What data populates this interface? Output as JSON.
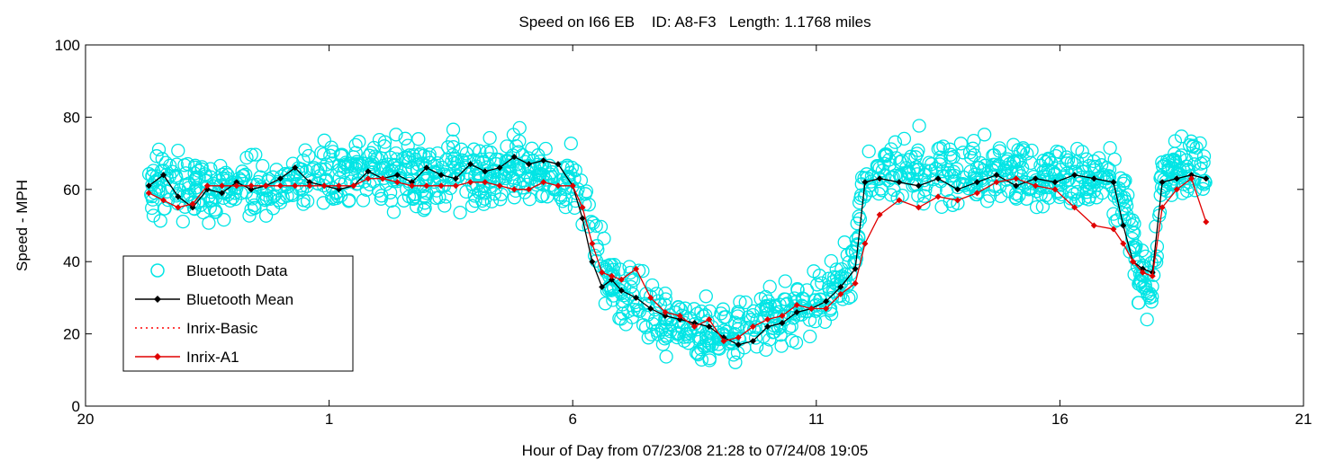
{
  "chart_data": {
    "type": "scatter",
    "title": "Speed on I66 EB    ID: A8-F3   Length: 1.1768 miles",
    "xlabel": "Hour of Day from 07/23/08 21:28 to 07/24/08 19:05",
    "ylabel": "Speed - MPH",
    "xlim": [
      20,
      45
    ],
    "ylim": [
      0,
      100
    ],
    "x_ticks": [
      {
        "value": 20,
        "label": "20"
      },
      {
        "value": 25,
        "label": "1"
      },
      {
        "value": 30,
        "label": "6"
      },
      {
        "value": 35,
        "label": "11"
      },
      {
        "value": 40,
        "label": "16"
      },
      {
        "value": 45,
        "label": "21"
      }
    ],
    "y_ticks": [
      {
        "value": 0,
        "label": "0"
      },
      {
        "value": 20,
        "label": "20"
      },
      {
        "value": 40,
        "label": "40"
      },
      {
        "value": 60,
        "label": "60"
      },
      {
        "value": 80,
        "label": "80"
      },
      {
        "value": 100,
        "label": "100"
      }
    ],
    "grid": false,
    "legend_position": "bottom-left",
    "series": [
      {
        "name": "Bluetooth Data",
        "style": "circles",
        "color": "#00e5e5",
        "profile_x": [
          21.3,
          22.0,
          24.0,
          26.0,
          28.0,
          29.0,
          30.0,
          30.3,
          30.6,
          31.0,
          32.0,
          33.0,
          34.0,
          35.0,
          35.5,
          35.8,
          36.0,
          36.3,
          37.0,
          39.0,
          40.0,
          41.0,
          41.4,
          41.6,
          41.9,
          42.1,
          42.5,
          43.0
        ],
        "profile_y": [
          62,
          60,
          61,
          65,
          64,
          66,
          62,
          54,
          38,
          31,
          23,
          19,
          24,
          29,
          33,
          41,
          64,
          65,
          66,
          65,
          64,
          64,
          55,
          36,
          34,
          64,
          65,
          66
        ],
        "spread": 7
      },
      {
        "name": "Bluetooth Mean",
        "style": "line-diamond",
        "color": "#000000",
        "x": [
          21.3,
          21.6,
          21.9,
          22.2,
          22.5,
          22.8,
          23.1,
          23.4,
          23.7,
          24.0,
          24.3,
          24.6,
          24.9,
          25.2,
          25.5,
          25.8,
          26.1,
          26.4,
          26.7,
          27.0,
          27.3,
          27.6,
          27.9,
          28.2,
          28.5,
          28.8,
          29.1,
          29.4,
          29.7,
          30.0,
          30.2,
          30.4,
          30.6,
          30.8,
          31.0,
          31.3,
          31.6,
          31.9,
          32.2,
          32.5,
          32.8,
          33.1,
          33.4,
          33.7,
          34.0,
          34.3,
          34.6,
          34.9,
          35.2,
          35.5,
          35.8,
          36.0,
          36.3,
          36.7,
          37.1,
          37.5,
          37.9,
          38.3,
          38.7,
          39.1,
          39.5,
          39.9,
          40.3,
          40.7,
          41.1,
          41.3,
          41.5,
          41.7,
          41.9,
          42.1,
          42.4,
          42.7,
          43.0
        ],
        "y": [
          61,
          64,
          58,
          55,
          60,
          59,
          62,
          60,
          61,
          63,
          66,
          62,
          61,
          60,
          61,
          65,
          63,
          64,
          62,
          66,
          64,
          63,
          67,
          65,
          66,
          69,
          67,
          68,
          67,
          61,
          52,
          40,
          33,
          35,
          32,
          30,
          27,
          25,
          24,
          23,
          22,
          19,
          17,
          18,
          22,
          23,
          26,
          27,
          29,
          33,
          38,
          62,
          63,
          62,
          61,
          63,
          60,
          62,
          64,
          61,
          63,
          62,
          64,
          63,
          62,
          50,
          40,
          38,
          37,
          62,
          63,
          64,
          63
        ]
      },
      {
        "name": "Inrix-Basic",
        "style": "dotted",
        "color": "#ff0000",
        "x": [],
        "y": []
      },
      {
        "name": "Inrix-A1",
        "style": "line-diamond",
        "color": "#e00000",
        "x": [
          21.3,
          21.6,
          21.9,
          22.2,
          22.5,
          22.8,
          23.1,
          23.4,
          23.7,
          24.0,
          24.3,
          24.6,
          24.9,
          25.2,
          25.5,
          25.8,
          26.1,
          26.4,
          26.7,
          27.0,
          27.3,
          27.6,
          27.9,
          28.2,
          28.5,
          28.8,
          29.1,
          29.4,
          29.7,
          30.0,
          30.2,
          30.4,
          30.6,
          30.8,
          31.0,
          31.3,
          31.6,
          31.9,
          32.2,
          32.5,
          32.8,
          33.1,
          33.4,
          33.7,
          34.0,
          34.3,
          34.6,
          34.9,
          35.2,
          35.5,
          35.8,
          36.0,
          36.3,
          36.7,
          37.1,
          37.5,
          37.9,
          38.3,
          38.7,
          39.1,
          39.5,
          39.9,
          40.3,
          40.7,
          41.1,
          41.3,
          41.5,
          41.7,
          41.9,
          42.1,
          42.4,
          42.7,
          43.0
        ],
        "y": [
          59,
          57,
          55,
          56,
          61,
          61,
          61,
          61,
          61,
          61,
          61,
          61,
          61,
          61,
          61,
          63,
          63,
          62,
          61,
          61,
          61,
          61,
          62,
          62,
          61,
          60,
          60,
          62,
          61,
          61,
          55,
          45,
          37,
          36,
          35,
          38,
          30,
          26,
          25,
          22,
          24,
          18,
          19,
          22,
          24,
          25,
          28,
          27,
          27,
          31,
          34,
          45,
          53,
          57,
          55,
          58,
          57,
          59,
          62,
          63,
          61,
          60,
          55,
          50,
          49,
          45,
          40,
          37,
          36,
          55,
          60,
          63,
          51
        ]
      }
    ]
  }
}
